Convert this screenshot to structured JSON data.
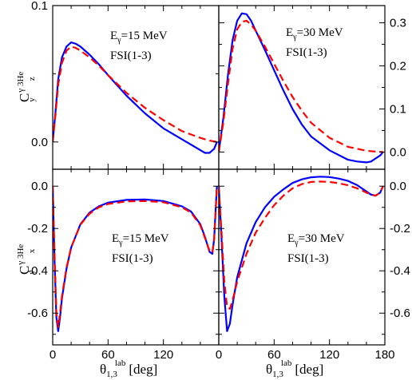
{
  "chart_data": [
    {
      "type": "line",
      "panel": "top-left",
      "annotation": {
        "energy_symbol": "E",
        "energy_sub": "γ",
        "energy_value": "=15 MeV",
        "model": "FSI(1-3)"
      },
      "xlim": [
        0,
        180
      ],
      "ylim": [
        -0.02,
        0.1
      ],
      "y_tick_labels": [
        {
          "value": 0.0,
          "label": "0.0"
        },
        {
          "value": 0.1,
          "label": "0.1"
        }
      ],
      "y_axis_side": "left",
      "series": [
        {
          "style": "solid",
          "color": "#0000ff",
          "x": [
            0,
            3,
            6,
            10,
            15,
            20,
            25,
            30,
            40,
            50,
            60,
            80,
            100,
            120,
            140,
            160,
            165,
            170,
            175,
            178
          ],
          "y": [
            0.0,
            0.022,
            0.046,
            0.062,
            0.07,
            0.073,
            0.072,
            0.07,
            0.064,
            0.057,
            0.049,
            0.034,
            0.021,
            0.01,
            0.002,
            -0.006,
            -0.008,
            -0.008,
            -0.005,
            0.0
          ]
        },
        {
          "style": "dashed",
          "color": "#ff0000",
          "x": [
            0,
            3,
            6,
            10,
            15,
            20,
            25,
            30,
            40,
            50,
            60,
            80,
            100,
            120,
            140,
            160,
            170,
            178
          ],
          "y": [
            0.0,
            0.02,
            0.042,
            0.058,
            0.067,
            0.07,
            0.069,
            0.067,
            0.062,
            0.056,
            0.049,
            0.036,
            0.025,
            0.016,
            0.008,
            0.003,
            0.001,
            0.0
          ]
        }
      ]
    },
    {
      "type": "line",
      "panel": "top-right",
      "annotation": {
        "energy_symbol": "E",
        "energy_sub": "γ",
        "energy_value": "=30 MeV",
        "model": "FSI(1-3)"
      },
      "xlim": [
        0,
        180
      ],
      "ylim": [
        -0.04,
        0.34
      ],
      "y_tick_labels": [
        {
          "value": 0.0,
          "label": "0.0"
        },
        {
          "value": 0.1,
          "label": "0.1"
        },
        {
          "value": 0.2,
          "label": "0.2"
        },
        {
          "value": 0.3,
          "label": "0.3"
        }
      ],
      "y_axis_side": "right",
      "series": [
        {
          "style": "solid",
          "color": "#0000ff",
          "x": [
            0,
            5,
            10,
            15,
            20,
            25,
            30,
            35,
            40,
            50,
            60,
            70,
            80,
            90,
            100,
            120,
            140,
            150,
            160,
            165,
            170,
            175,
            178
          ],
          "y": [
            0.0,
            0.08,
            0.18,
            0.26,
            0.305,
            0.322,
            0.32,
            0.305,
            0.282,
            0.237,
            0.19,
            0.143,
            0.1,
            0.064,
            0.036,
            0.004,
            -0.018,
            -0.022,
            -0.024,
            -0.022,
            -0.015,
            -0.008,
            0.0
          ]
        },
        {
          "style": "dashed",
          "color": "#ff0000",
          "x": [
            0,
            5,
            10,
            15,
            20,
            25,
            30,
            35,
            40,
            50,
            60,
            70,
            80,
            90,
            100,
            120,
            140,
            160,
            170,
            178
          ],
          "y": [
            0.0,
            0.07,
            0.16,
            0.24,
            0.285,
            0.302,
            0.305,
            0.296,
            0.282,
            0.245,
            0.205,
            0.165,
            0.128,
            0.096,
            0.068,
            0.033,
            0.012,
            0.003,
            0.001,
            0.0
          ]
        }
      ]
    },
    {
      "type": "line",
      "panel": "bottom-left",
      "annotation": {
        "energy_symbol": "E",
        "energy_sub": "γ",
        "energy_value": "=15 MeV",
        "model": "FSI(1-3)"
      },
      "xlim": [
        0,
        180
      ],
      "ylim": [
        -0.75,
        0.08
      ],
      "x_tick_labels": [
        {
          "value": 0,
          "label": "0"
        },
        {
          "value": 60,
          "label": "60"
        },
        {
          "value": 120,
          "label": "120"
        }
      ],
      "y_tick_labels": [
        {
          "value": 0.0,
          "label": "0.0"
        },
        {
          "value": -0.2,
          "label": "-0.2"
        },
        {
          "value": -0.4,
          "label": "-0.4"
        },
        {
          "value": -0.6,
          "label": "-0.6"
        }
      ],
      "y_axis_side": "left",
      "series": [
        {
          "style": "solid",
          "color": "#0000ff",
          "x": [
            0,
            2,
            4,
            6,
            8,
            10,
            15,
            20,
            30,
            40,
            50,
            60,
            80,
            100,
            120,
            140,
            150,
            160,
            165,
            170,
            173,
            175,
            177,
            178
          ],
          "y": [
            0.0,
            -0.35,
            -0.62,
            -0.685,
            -0.62,
            -0.53,
            -0.39,
            -0.29,
            -0.18,
            -0.125,
            -0.095,
            -0.078,
            -0.065,
            -0.063,
            -0.07,
            -0.095,
            -0.12,
            -0.18,
            -0.24,
            -0.31,
            -0.32,
            -0.25,
            -0.08,
            0.0
          ]
        },
        {
          "style": "dashed",
          "color": "#ff0000",
          "x": [
            0,
            2,
            4,
            6,
            8,
            10,
            15,
            20,
            30,
            40,
            50,
            60,
            80,
            100,
            120,
            140,
            150,
            160,
            165,
            170,
            173,
            175,
            177,
            178
          ],
          "y": [
            0.0,
            -0.32,
            -0.6,
            -0.665,
            -0.6,
            -0.52,
            -0.385,
            -0.29,
            -0.182,
            -0.13,
            -0.1,
            -0.084,
            -0.072,
            -0.07,
            -0.076,
            -0.1,
            -0.125,
            -0.185,
            -0.245,
            -0.305,
            -0.315,
            -0.25,
            -0.09,
            0.0
          ]
        }
      ]
    },
    {
      "type": "line",
      "panel": "bottom-right",
      "annotation": {
        "energy_symbol": "E",
        "energy_sub": "γ",
        "energy_value": "=30 MeV",
        "model": "FSI(1-3)"
      },
      "xlim": [
        0,
        180
      ],
      "ylim": [
        -0.75,
        0.08
      ],
      "x_tick_labels": [
        {
          "value": 0,
          "label": "0"
        },
        {
          "value": 60,
          "label": "60"
        },
        {
          "value": 120,
          "label": "120"
        },
        {
          "value": 180,
          "label": "180"
        }
      ],
      "y_tick_labels": [
        {
          "value": 0.0,
          "label": "0.0"
        },
        {
          "value": -0.2,
          "label": "-0.2"
        },
        {
          "value": -0.4,
          "label": "-0.4"
        },
        {
          "value": -0.6,
          "label": "-0.6"
        }
      ],
      "y_axis_side": "right",
      "series": [
        {
          "style": "solid",
          "color": "#0000ff",
          "x": [
            0,
            3,
            6,
            9,
            12,
            15,
            20,
            30,
            40,
            50,
            60,
            70,
            80,
            90,
            100,
            110,
            120,
            130,
            140,
            150,
            160,
            165,
            170,
            175,
            178
          ],
          "y": [
            0.0,
            -0.25,
            -0.52,
            -0.685,
            -0.65,
            -0.56,
            -0.43,
            -0.27,
            -0.17,
            -0.1,
            -0.05,
            -0.015,
            0.015,
            0.032,
            0.042,
            0.045,
            0.043,
            0.036,
            0.025,
            0.005,
            -0.025,
            -0.04,
            -0.045,
            -0.03,
            0.0
          ]
        },
        {
          "style": "dashed",
          "color": "#ff0000",
          "x": [
            0,
            3,
            6,
            9,
            12,
            15,
            20,
            30,
            40,
            50,
            60,
            70,
            80,
            90,
            100,
            110,
            120,
            130,
            140,
            150,
            160,
            165,
            170,
            175,
            178
          ],
          "y": [
            0.0,
            -0.22,
            -0.45,
            -0.57,
            -0.58,
            -0.54,
            -0.45,
            -0.32,
            -0.22,
            -0.15,
            -0.09,
            -0.045,
            -0.01,
            0.01,
            0.02,
            0.022,
            0.02,
            0.014,
            0.004,
            -0.01,
            -0.03,
            -0.04,
            -0.045,
            -0.03,
            0.0
          ]
        }
      ]
    }
  ],
  "axes": {
    "y_top": {
      "main": "C",
      "sup": "γ 3He",
      "sub_y": "y",
      "sub_axis": "z"
    },
    "y_bottom": {
      "main": "C",
      "sup": "γ 3He",
      "sub_y": "y",
      "sub_axis": "x"
    },
    "x_left": {
      "main": "θ",
      "sub": "1,3",
      "sup": "lab",
      "unit": "[deg]"
    },
    "x_right": {
      "main": "θ",
      "sub": "1,3",
      "sup": "lab",
      "unit": "[deg]"
    }
  }
}
